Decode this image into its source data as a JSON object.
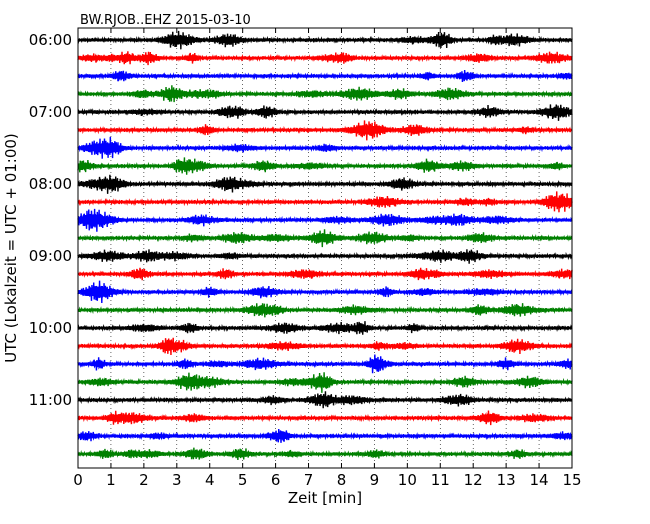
{
  "chart_data": {
    "type": "line",
    "title": "BW.RJOB..EHZ 2015-03-10",
    "xlabel": "Zeit  [min]",
    "ylabel": "UTC (Lokalzeit = UTC + 01:00)",
    "xlim": [
      0,
      15
    ],
    "x_ticks": [
      0,
      1,
      2,
      3,
      4,
      5,
      6,
      7,
      8,
      9,
      10,
      11,
      12,
      13,
      14,
      15
    ],
    "x_tick_labels": [
      "0",
      "1",
      "2",
      "3",
      "4",
      "5",
      "6",
      "7",
      "8",
      "9",
      "10",
      "11",
      "12",
      "13",
      "14",
      "15"
    ],
    "y_tick_labels": [
      "06:00",
      "07:00",
      "08:00",
      "09:00",
      "10:00",
      "11:00"
    ],
    "y_tick_start_hours": [
      6,
      7,
      8,
      9,
      10,
      11
    ],
    "trace_start_hours": [
      6.0,
      6.25,
      6.5,
      6.75,
      7.0,
      7.25,
      7.5,
      7.75,
      8.0,
      8.25,
      8.5,
      8.75,
      9.0,
      9.25,
      9.5,
      9.75,
      10.0,
      10.25,
      10.5,
      10.75,
      11.0,
      11.25,
      11.5,
      11.75
    ],
    "trace_duration_min": 15,
    "trace_colors": [
      "#000000",
      "#ff0000",
      "#0000ff",
      "#008000"
    ],
    "grid": "vertical dotted at each minute",
    "legend": "none"
  }
}
